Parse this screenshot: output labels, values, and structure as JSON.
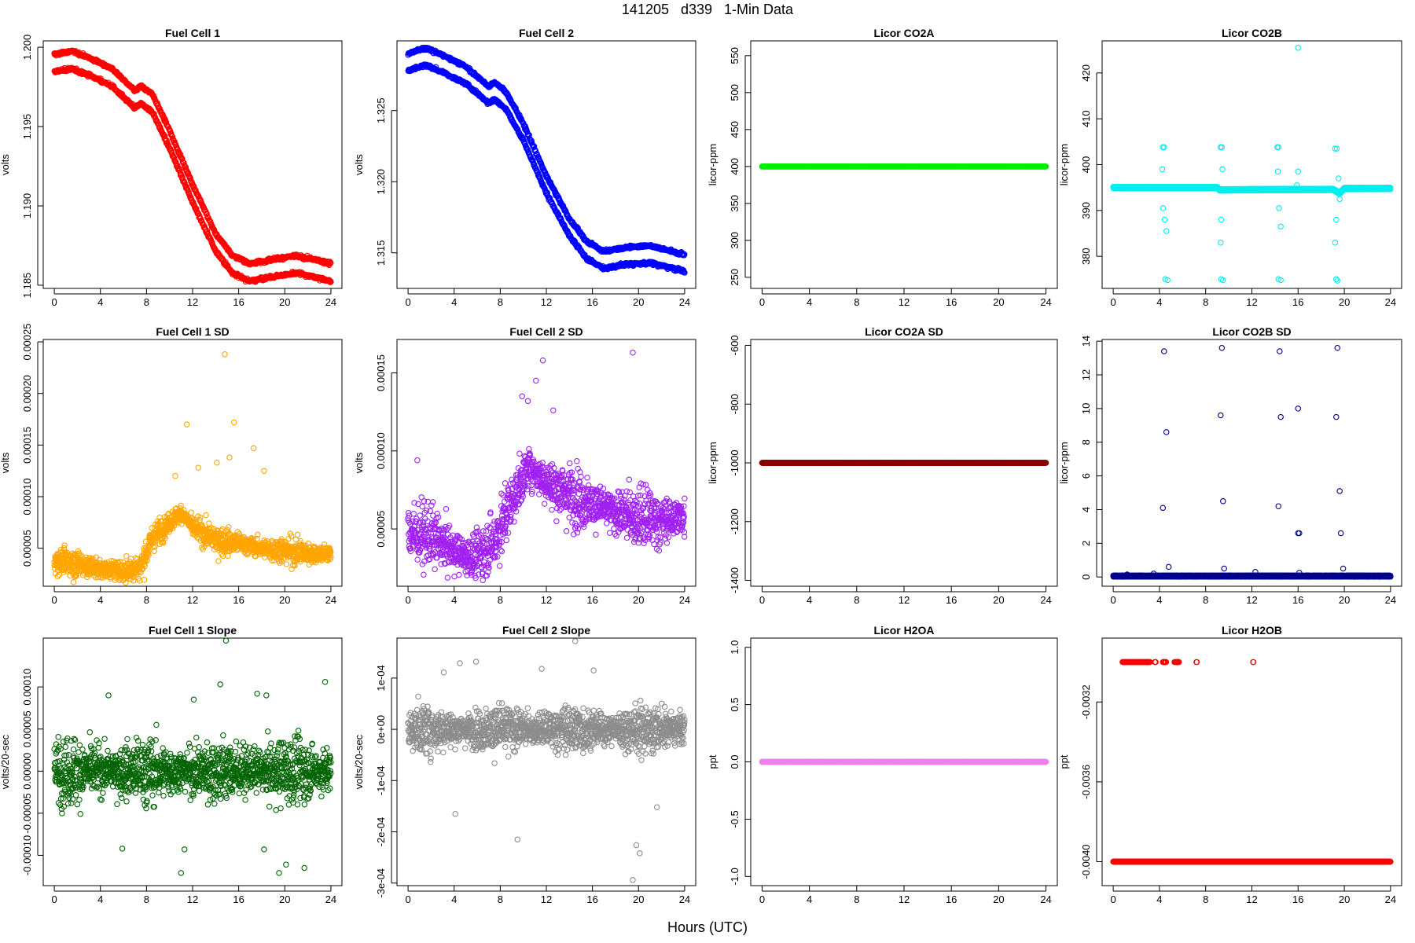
{
  "figure": {
    "title": "141205   d339   1-Min Data",
    "xlabel": "Hours (UTC)"
  },
  "chart_data": [
    {
      "type": "scatter",
      "title": "Fuel Cell 1",
      "ylabel": "volts",
      "xlim": [
        -0.96,
        24.96
      ],
      "ylim": [
        1.1848,
        1.2004
      ],
      "xticks": [
        0,
        4,
        8,
        12,
        16,
        20,
        24
      ],
      "yticks": [
        1.185,
        1.19,
        1.195,
        1.2
      ],
      "ytick_labels": [
        "1.185",
        "1.190",
        "1.195",
        "1.200"
      ],
      "color": "#ff0000",
      "dense": true,
      "band": 0.00055,
      "trend": [
        [
          0,
          1.199
        ],
        [
          1.5,
          1.1992
        ],
        [
          3,
          1.1988
        ],
        [
          5,
          1.1981
        ],
        [
          7,
          1.1967
        ],
        [
          7.5,
          1.197
        ],
        [
          8.5,
          1.1965
        ],
        [
          10,
          1.1942
        ],
        [
          12,
          1.1908
        ],
        [
          14,
          1.1877
        ],
        [
          15.5,
          1.1863
        ],
        [
          17,
          1.1858
        ],
        [
          19,
          1.1861
        ],
        [
          21,
          1.1863
        ],
        [
          23,
          1.186
        ],
        [
          24,
          1.1858
        ]
      ]
    },
    {
      "type": "scatter",
      "title": "Fuel Cell 2",
      "ylabel": "volts",
      "xlim": [
        -0.96,
        24.96
      ],
      "ylim": [
        1.3125,
        1.3299
      ],
      "xticks": [
        0,
        4,
        8,
        12,
        16,
        20,
        24
      ],
      "yticks": [
        1.315,
        1.32,
        1.325
      ],
      "ytick_labels": [
        "1.315",
        "1.320",
        "1.325"
      ],
      "color": "#0000ff",
      "dense": true,
      "band": 0.0006,
      "trend": [
        [
          0,
          1.3284
        ],
        [
          1.5,
          1.3288
        ],
        [
          3,
          1.3283
        ],
        [
          5,
          1.3275
        ],
        [
          7,
          1.3261
        ],
        [
          7.5,
          1.3264
        ],
        [
          8.5,
          1.3257
        ],
        [
          10,
          1.3235
        ],
        [
          12,
          1.3198
        ],
        [
          14,
          1.3168
        ],
        [
          15.5,
          1.3152
        ],
        [
          17,
          1.3145
        ],
        [
          19,
          1.3148
        ],
        [
          21,
          1.3149
        ],
        [
          23,
          1.3145
        ],
        [
          24,
          1.3143
        ]
      ]
    },
    {
      "type": "scatter",
      "title": "Licor CO2A",
      "ylabel": "licor-ppm",
      "xlim": [
        -0.96,
        24.96
      ],
      "ylim": [
        235,
        570
      ],
      "xticks": [
        0,
        4,
        8,
        12,
        16,
        20,
        24
      ],
      "yticks": [
        250,
        300,
        350,
        400,
        450,
        500,
        550
      ],
      "ytick_labels": [
        "250",
        "300",
        "350",
        "400",
        "450",
        "500",
        "550"
      ],
      "color": "#00ee00",
      "dense": true,
      "band": 0.0,
      "trend": [
        [
          0,
          400
        ],
        [
          24,
          400
        ]
      ]
    },
    {
      "type": "scatter",
      "title": "Licor CO2B",
      "ylabel": "licor-ppm",
      "xlim": [
        -0.96,
        24.96
      ],
      "ylim": [
        373,
        427
      ],
      "xticks": [
        0,
        4,
        8,
        12,
        16,
        20,
        24
      ],
      "yticks": [
        380,
        390,
        400,
        410,
        420
      ],
      "ytick_labels": [
        "380",
        "390",
        "400",
        "410",
        "420"
      ],
      "color": "#00eeee",
      "dense": true,
      "band": 0.15,
      "trend": [
        [
          0,
          395
        ],
        [
          9,
          395
        ],
        [
          9.2,
          394.5
        ],
        [
          19,
          394.6
        ],
        [
          19.6,
          393.8
        ],
        [
          20,
          394.8
        ],
        [
          24,
          394.8
        ]
      ],
      "outliers": [
        [
          4.3,
          403.8
        ],
        [
          4.4,
          403.8
        ],
        [
          4.25,
          399
        ],
        [
          4.3,
          390.5
        ],
        [
          4.45,
          388
        ],
        [
          4.6,
          385.5
        ],
        [
          4.5,
          375
        ],
        [
          4.7,
          374.8
        ],
        [
          9.3,
          403.8
        ],
        [
          9.4,
          403.8
        ],
        [
          9.45,
          399
        ],
        [
          9.35,
          388
        ],
        [
          9.3,
          383
        ],
        [
          9.35,
          375
        ],
        [
          9.5,
          374.8
        ],
        [
          14.2,
          403.8
        ],
        [
          14.3,
          403.8
        ],
        [
          14.25,
          398.5
        ],
        [
          14.35,
          390.5
        ],
        [
          14.5,
          386.5
        ],
        [
          14.3,
          375
        ],
        [
          14.5,
          374.8
        ],
        [
          16.0,
          425.5
        ],
        [
          16.0,
          398.5
        ],
        [
          15.9,
          395.5
        ],
        [
          19.2,
          403.5
        ],
        [
          19.35,
          403.5
        ],
        [
          19.5,
          397
        ],
        [
          19.3,
          388
        ],
        [
          19.2,
          383
        ],
        [
          19.3,
          375
        ],
        [
          19.4,
          374.7
        ],
        [
          19.6,
          392.5
        ]
      ]
    },
    {
      "type": "scatter",
      "title": "Fuel Cell 1 SD",
      "ylabel": "volts",
      "xlim": [
        -0.96,
        24.96
      ],
      "ylim": [
        1.32e-05,
        0.0002523
      ],
      "xticks": [
        0,
        4,
        8,
        12,
        16,
        20,
        24
      ],
      "yticks": [
        5e-05,
        0.0001,
        0.00015,
        0.0002,
        0.00025
      ],
      "ytick_labels": [
        "0.00005",
        "0.00010",
        "0.00015",
        "0.00020",
        "0.00025"
      ],
      "color": "#ffa500",
      "spread": 9e-06,
      "trend": [
        [
          0,
          3.8e-05
        ],
        [
          2,
          3.5e-05
        ],
        [
          4,
          3e-05
        ],
        [
          6,
          2.8e-05
        ],
        [
          7.5,
          3.2e-05
        ],
        [
          8.5,
          6e-05
        ],
        [
          10,
          7.5e-05
        ],
        [
          11,
          8.5e-05
        ],
        [
          12,
          7e-05
        ],
        [
          14,
          5.8e-05
        ],
        [
          16,
          5.5e-05
        ],
        [
          18,
          5e-05
        ],
        [
          20,
          4.8e-05
        ],
        [
          22,
          4.5e-05
        ],
        [
          24,
          4.5e-05
        ]
      ],
      "outliers": [
        [
          14.8,
          0.000238
        ],
        [
          11.5,
          0.00017
        ],
        [
          15.6,
          0.000172
        ],
        [
          17.3,
          0.000147
        ],
        [
          14.1,
          0.000133
        ],
        [
          15.2,
          0.000138
        ],
        [
          18.2,
          0.000125
        ],
        [
          12.5,
          0.000128
        ],
        [
          10.5,
          0.00012
        ]
      ]
    },
    {
      "type": "scatter",
      "title": "Fuel Cell 2 SD",
      "ylabel": "volts",
      "xlim": [
        -0.96,
        24.96
      ],
      "ylim": [
        1.33e-05,
        0.0001714
      ],
      "xticks": [
        0,
        4,
        8,
        12,
        16,
        20,
        24
      ],
      "yticks": [
        5e-05,
        0.0001,
        0.00015
      ],
      "ytick_labels": [
        "0.00005",
        "0.00010",
        "0.00015"
      ],
      "color": "#a020f0",
      "spread": 1.3e-05,
      "trend": [
        [
          0,
          4.8e-05
        ],
        [
          2,
          4.5e-05
        ],
        [
          4,
          3.6e-05
        ],
        [
          5,
          3.2e-05
        ],
        [
          6,
          3.3e-05
        ],
        [
          7.5,
          4.2e-05
        ],
        [
          9,
          6.8e-05
        ],
        [
          10.5,
          9e-05
        ],
        [
          12,
          8e-05
        ],
        [
          14,
          7.2e-05
        ],
        [
          16,
          6.6e-05
        ],
        [
          18,
          6e-05
        ],
        [
          20,
          5.8e-05
        ],
        [
          22,
          5.5e-05
        ],
        [
          24,
          5.8e-05
        ]
      ],
      "outliers": [
        [
          19.5,
          0.000163
        ],
        [
          11.7,
          0.000158
        ],
        [
          11.1,
          0.000145
        ],
        [
          9.9,
          0.000135
        ],
        [
          10.4,
          0.000132
        ],
        [
          0.8,
          9.4e-05
        ],
        [
          5.8,
          2e-05
        ],
        [
          12.6,
          0.000126
        ]
      ]
    },
    {
      "type": "scatter",
      "title": "Licor CO2A SD",
      "ylabel": "licor-ppm",
      "xlim": [
        -0.96,
        24.96
      ],
      "ylim": [
        -1420,
        -580
      ],
      "xticks": [
        0,
        4,
        8,
        12,
        16,
        20,
        24
      ],
      "yticks": [
        -1400,
        -1200,
        -1000,
        -800,
        -600
      ],
      "ytick_labels": [
        "-1400",
        "-1200",
        "-1000",
        "-800",
        "-600"
      ],
      "color": "#8b0000",
      "dense": true,
      "band": 0.0,
      "trend": [
        [
          0,
          -1000
        ],
        [
          24,
          -1000
        ]
      ]
    },
    {
      "type": "scatter",
      "title": "Licor CO2B SD",
      "ylabel": "licor-ppm",
      "xlim": [
        -0.96,
        24.96
      ],
      "ylim": [
        -0.55,
        14.1
      ],
      "xticks": [
        0,
        4,
        8,
        12,
        16,
        20,
        24
      ],
      "yticks": [
        0,
        2,
        4,
        6,
        8,
        10,
        12,
        14
      ],
      "ytick_labels": [
        "0",
        "2",
        "4",
        "6",
        "8",
        "10",
        "12",
        "14"
      ],
      "color": "#00008b",
      "dense": true,
      "band": 0.03,
      "trend": [
        [
          0,
          0.05
        ],
        [
          24,
          0.05
        ]
      ],
      "outliers": [
        [
          4.4,
          13.4
        ],
        [
          9.4,
          13.6
        ],
        [
          14.4,
          13.4
        ],
        [
          19.4,
          13.6
        ],
        [
          4.6,
          8.6
        ],
        [
          9.3,
          9.6
        ],
        [
          14.5,
          9.5
        ],
        [
          16.0,
          10.0
        ],
        [
          19.3,
          9.5
        ],
        [
          4.3,
          4.1
        ],
        [
          9.5,
          4.5
        ],
        [
          14.3,
          4.2
        ],
        [
          19.6,
          5.1
        ],
        [
          16.1,
          2.6
        ],
        [
          16.0,
          2.6
        ],
        [
          19.7,
          2.6
        ],
        [
          4.8,
          0.6
        ],
        [
          9.6,
          0.5
        ],
        [
          12.3,
          0.3
        ],
        [
          19.9,
          0.5
        ],
        [
          1.2,
          0.15
        ],
        [
          3.5,
          0.2
        ],
        [
          16.1,
          0.25
        ]
      ]
    },
    {
      "type": "scatter",
      "title": "Fuel Cell 1 Slope",
      "ylabel": "volts/20-sec",
      "xlim": [
        -0.96,
        24.96
      ],
      "ylim": [
        -0.000136,
        0.000158
      ],
      "xticks": [
        0,
        4,
        8,
        12,
        16,
        20,
        24
      ],
      "yticks": [
        -0.0001,
        -5e-05,
        0,
        5e-05,
        0.0001
      ],
      "ytick_labels": [
        "-0.00010",
        "-0.00005",
        "0.00000",
        "0.00005",
        "0.00010"
      ],
      "color": "#006400",
      "spread": 2.7e-05,
      "trend": [
        [
          0,
          0
        ],
        [
          24,
          0
        ]
      ],
      "outliers": [
        [
          14.9,
          0.000155
        ],
        [
          14.4,
          0.000103
        ],
        [
          23.5,
          0.000106
        ],
        [
          11.0,
          -0.000121
        ],
        [
          19.5,
          -0.000121
        ],
        [
          21.7,
          -0.000115
        ],
        [
          20.1,
          -0.000111
        ],
        [
          18.2,
          -9.3e-05
        ],
        [
          17.6,
          9.2e-05
        ],
        [
          18.4,
          9e-05
        ],
        [
          4.7,
          9e-05
        ],
        [
          12.1,
          8.5e-05
        ],
        [
          5.9,
          -9.2e-05
        ],
        [
          11.3,
          -9.3e-05
        ]
      ]
    },
    {
      "type": "scatter",
      "title": "Fuel Cell 2 Slope",
      "ylabel": "volts/20-sec",
      "xlim": [
        -0.96,
        24.96
      ],
      "ylim": [
        -0.000305,
        0.000178
      ],
      "xticks": [
        0,
        4,
        8,
        12,
        16,
        20,
        24
      ],
      "yticks": [
        -0.0003,
        -0.0002,
        -0.0001,
        0,
        0.0001
      ],
      "ytick_labels": [
        "-3e-04",
        "-2e-04",
        "-1e-04",
        "0e+00",
        "1e-04"
      ],
      "color": "#8c8c8c",
      "spread": 3.2e-05,
      "trend": [
        [
          0,
          0
        ],
        [
          24,
          0
        ]
      ],
      "outliers": [
        [
          14.5,
          0.000172
        ],
        [
          19.5,
          -0.000294
        ],
        [
          20.1,
          -0.000242
        ],
        [
          19.8,
          -0.000226
        ],
        [
          9.5,
          -0.000215
        ],
        [
          4.5,
          0.000129
        ],
        [
          5.9,
          0.000132
        ],
        [
          11.6,
          0.000118
        ],
        [
          16.1,
          0.000115
        ],
        [
          3.1,
          0.000111
        ],
        [
          21.6,
          -0.000152
        ],
        [
          4.1,
          -0.000165
        ]
      ]
    },
    {
      "type": "scatter",
      "title": "Licor H2OA",
      "ylabel": "ppt",
      "xlim": [
        -0.96,
        24.96
      ],
      "ylim": [
        -1.08,
        1.08
      ],
      "xticks": [
        0,
        4,
        8,
        12,
        16,
        20,
        24
      ],
      "yticks": [
        -1,
        -0.5,
        0,
        0.5,
        1
      ],
      "ytick_labels": [
        "-1.0",
        "-0.5",
        "0.0",
        "0.5",
        "1.0"
      ],
      "color": "#ee82ee",
      "dense": true,
      "band": 0.0,
      "trend": [
        [
          0,
          0
        ],
        [
          24,
          0
        ]
      ]
    },
    {
      "type": "scatter",
      "title": "Licor H2OB",
      "ylabel": "ppt",
      "xlim": [
        -0.96,
        24.96
      ],
      "ylim": [
        -0.00412,
        -0.00288
      ],
      "xticks": [
        0,
        4,
        8,
        12,
        16,
        20,
        24
      ],
      "yticks": [
        -0.004,
        -0.0036,
        -0.0032
      ],
      "ytick_labels": [
        "-0.0040",
        "-0.0036",
        "-0.0032"
      ],
      "color": "#ff0000",
      "dense": true,
      "band": 0.0,
      "trend": [
        [
          0,
          -0.004
        ],
        [
          24,
          -0.004
        ]
      ],
      "upper_level": -0.003,
      "upper_segments": [
        [
          0.8,
          3.2
        ],
        [
          3.6,
          3.7
        ],
        [
          4.3,
          4.6
        ],
        [
          5.3,
          5.7
        ],
        [
          7.2,
          7.25
        ],
        [
          12.1,
          12.15
        ]
      ]
    }
  ]
}
